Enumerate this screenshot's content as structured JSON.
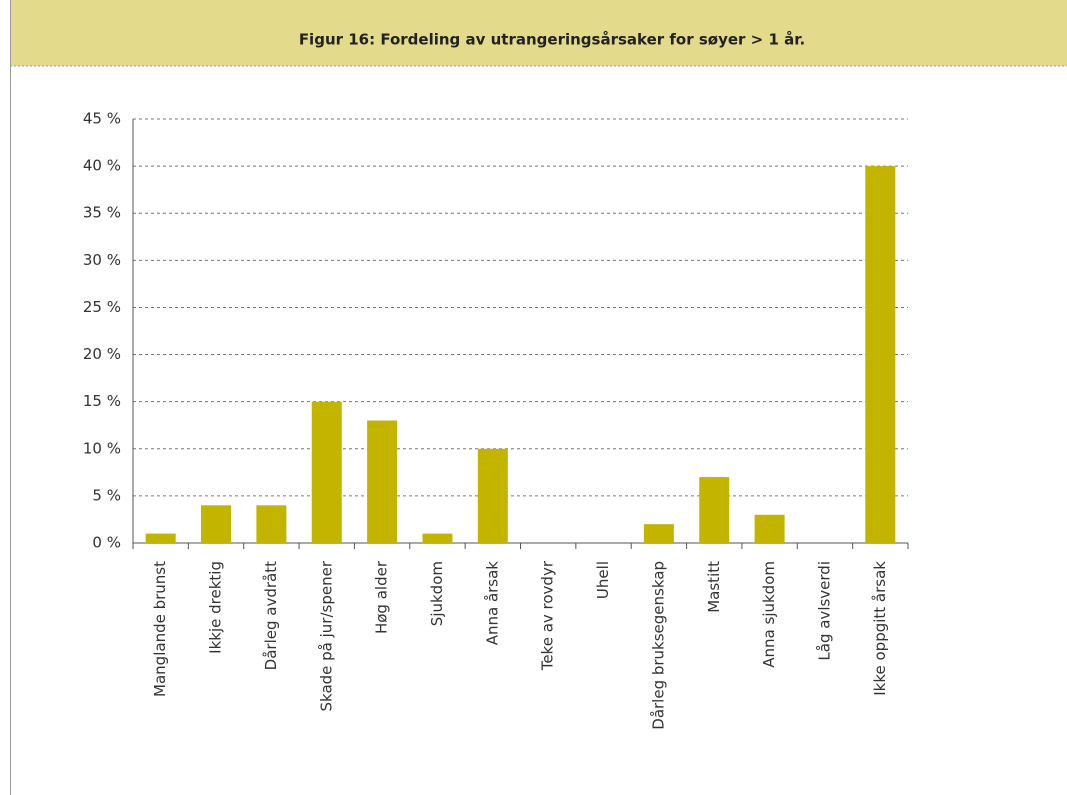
{
  "chart_data": {
    "type": "bar",
    "title": "Figur 16: Fordeling av utrangeringsårsaker for søyer > 1 år.",
    "categories": [
      "Manglande brunst",
      "Ikkje drektig",
      "Dårleg avdrått",
      "Skade på jur/spener",
      "Høg alder",
      "Sjukdom",
      "Anna årsak",
      "Teke av rovdyr",
      "Uhell",
      "Dårleg bruksegenskap",
      "Mastitt",
      "Anna sjukdom",
      "Låg avlsverdi",
      "Ikke oppgitt årsak"
    ],
    "values": [
      1,
      4,
      4,
      15,
      13,
      1,
      10,
      0,
      0,
      2,
      7,
      3,
      0,
      40
    ],
    "color": "#c3b400",
    "ylim": [
      0,
      45
    ],
    "yticks": [
      {
        "value": 0,
        "label": "0 %"
      },
      {
        "value": 5,
        "label": "5 %"
      },
      {
        "value": 10,
        "label": "10 %"
      },
      {
        "value": 15,
        "label": "15 %"
      },
      {
        "value": 20,
        "label": "20 %"
      },
      {
        "value": 25,
        "label": "25 %"
      },
      {
        "value": 30,
        "label": "30 %"
      },
      {
        "value": 35,
        "label": "35 %"
      },
      {
        "value": 40,
        "label": "40 %"
      },
      {
        "value": 45,
        "label": "45 %"
      }
    ],
    "grid": true
  }
}
